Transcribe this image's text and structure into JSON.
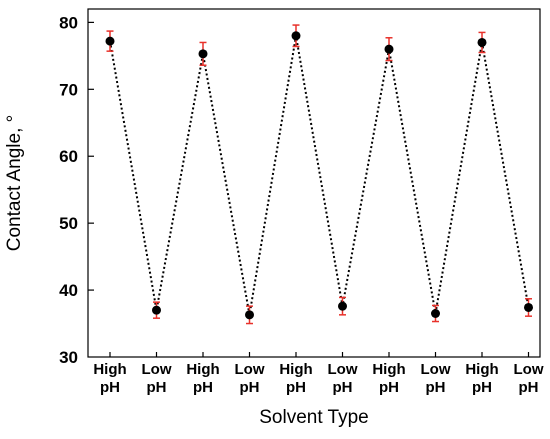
{
  "chart_data": {
    "type": "scatter",
    "title": "",
    "xlabel": "Solvent Type",
    "ylabel": "Contact Angle, °",
    "ylim": [
      30,
      82
    ],
    "yticks": [
      30,
      40,
      50,
      60,
      70,
      80
    ],
    "categories": [
      {
        "line1": "High",
        "line2": "pH"
      },
      {
        "line1": "Low",
        "line2": "pH"
      },
      {
        "line1": "High",
        "line2": "pH"
      },
      {
        "line1": "Low",
        "line2": "pH"
      },
      {
        "line1": "High",
        "line2": "pH"
      },
      {
        "line1": "Low",
        "line2": "pH"
      },
      {
        "line1": "High",
        "line2": "pH"
      },
      {
        "line1": "Low",
        "line2": "pH"
      },
      {
        "line1": "High",
        "line2": "pH"
      },
      {
        "line1": "Low",
        "line2": "pH"
      }
    ],
    "series": [
      {
        "values": [
          77.2,
          37.0,
          75.3,
          36.3,
          78.0,
          37.6,
          76.0,
          36.5,
          77.0,
          37.4
        ],
        "error": [
          1.5,
          1.2,
          1.7,
          1.3,
          1.6,
          1.3,
          1.7,
          1.2,
          1.5,
          1.3
        ]
      }
    ],
    "grid": false,
    "colors": {
      "marker": "#000000",
      "error_bar": "#e8312a",
      "line": "#000000"
    }
  }
}
